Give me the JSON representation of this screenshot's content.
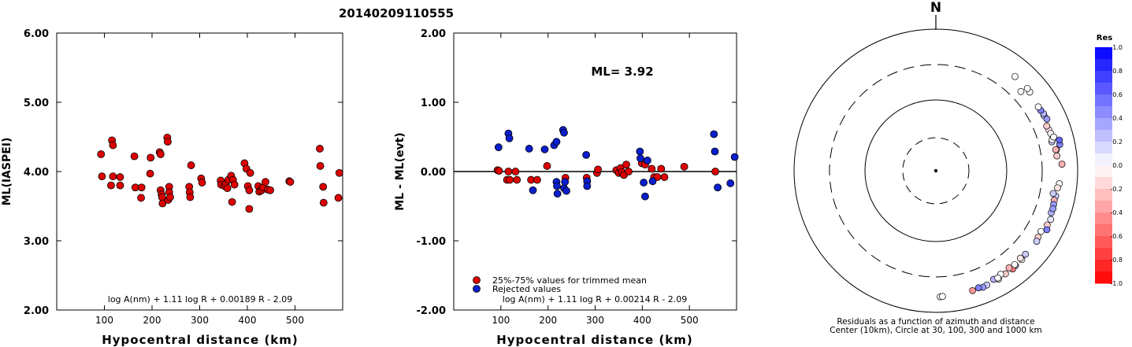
{
  "header": {
    "event_id": "20140209110555",
    "north_label": "N",
    "ml_text": "ML= 3.92"
  },
  "colors": {
    "trimmed": "#dd0000",
    "rejected": "#0a1ecc",
    "residual_positive": "#0000ff",
    "residual_negative": "#ff0000"
  },
  "chart_data": [
    {
      "type": "scatter",
      "panel": "ml-vs-distance",
      "ylabel": "ML(IASPEI)",
      "xlabel": "Hypocentral distance (km)",
      "xlim": [
        0,
        600
      ],
      "ylim": [
        2.0,
        6.0
      ],
      "xticks": [
        100,
        200,
        300,
        400,
        500
      ],
      "yticks": [
        "2.00",
        "3.00",
        "4.00",
        "5.00",
        "6.00"
      ],
      "formula": "log A(nm) + 1.11 log R + 0.00189 R - 2.09",
      "points": [
        [
          93,
          4.25
        ],
        [
          95,
          3.93
        ],
        [
          114,
          3.8
        ],
        [
          116,
          4.45
        ],
        [
          118,
          4.38
        ],
        [
          118,
          3.93
        ],
        [
          133,
          3.92
        ],
        [
          133,
          3.8
        ],
        [
          163,
          4.22
        ],
        [
          165,
          3.77
        ],
        [
          178,
          3.77
        ],
        [
          177,
          3.62
        ],
        [
          196,
          3.97
        ],
        [
          197,
          4.2
        ],
        [
          216,
          4.28
        ],
        [
          218,
          4.25
        ],
        [
          218,
          3.73
        ],
        [
          220,
          3.67
        ],
        [
          221,
          3.63
        ],
        [
          222,
          3.54
        ],
        [
          232,
          4.49
        ],
        [
          233,
          4.43
        ],
        [
          234,
          3.59
        ],
        [
          236,
          3.78
        ],
        [
          236,
          3.7
        ],
        [
          238,
          3.63
        ],
        [
          278,
          3.78
        ],
        [
          279,
          3.7
        ],
        [
          280,
          3.63
        ],
        [
          282,
          4.09
        ],
        [
          303,
          3.9
        ],
        [
          305,
          3.84
        ],
        [
          344,
          3.87
        ],
        [
          345,
          3.81
        ],
        [
          352,
          3.79
        ],
        [
          355,
          3.82
        ],
        [
          358,
          3.76
        ],
        [
          360,
          3.88
        ],
        [
          366,
          3.94
        ],
        [
          368,
          3.56
        ],
        [
          370,
          3.88
        ],
        [
          373,
          3.81
        ],
        [
          394,
          4.12
        ],
        [
          398,
          4.04
        ],
        [
          401,
          3.79
        ],
        [
          404,
          3.73
        ],
        [
          404,
          3.46
        ],
        [
          406,
          3.98
        ],
        [
          423,
          3.79
        ],
        [
          425,
          3.71
        ],
        [
          430,
          3.73
        ],
        [
          433,
          3.77
        ],
        [
          438,
          3.85
        ],
        [
          443,
          3.74
        ],
        [
          448,
          3.73
        ],
        [
          488,
          3.86
        ],
        [
          490,
          3.85
        ],
        [
          552,
          4.33
        ],
        [
          553,
          4.08
        ],
        [
          559,
          3.78
        ],
        [
          560,
          3.55
        ],
        [
          593,
          3.98
        ],
        [
          591,
          3.62
        ]
      ]
    },
    {
      "type": "scatter",
      "panel": "residual-vs-distance",
      "ylabel": "ML - ML(evt)",
      "xlabel": "Hypocentral distance (km)",
      "xlim": [
        0,
        600
      ],
      "ylim": [
        -2.0,
        2.0
      ],
      "xticks": [
        100,
        200,
        300,
        400,
        500
      ],
      "yticks": [
        "-2.00",
        "-1.00",
        "0.00",
        "1.00",
        "2.00"
      ],
      "formula": "log A(nm) + 1.11 log R + 0.00214 R - 2.09",
      "legend": [
        "25%-75% values for trimmed mean",
        "Rejected values"
      ],
      "series": [
        {
          "name": "25%-75% values for trimmed mean",
          "points": [
            [
              93,
              0.02
            ],
            [
              96,
              0.01
            ],
            [
              113,
              -0.12
            ],
            [
              116,
              0.0
            ],
            [
              119,
              -0.12
            ],
            [
              131,
              0.0
            ],
            [
              134,
              -0.12
            ],
            [
              164,
              -0.12
            ],
            [
              177,
              -0.12
            ],
            [
              198,
              0.08
            ],
            [
              237,
              -0.09
            ],
            [
              282,
              -0.09
            ],
            [
              304,
              -0.02
            ],
            [
              306,
              0.03
            ],
            [
              345,
              0.02
            ],
            [
              350,
              -0.02
            ],
            [
              354,
              0.05
            ],
            [
              357,
              -0.01
            ],
            [
              361,
              -0.05
            ],
            [
              366,
              0.1
            ],
            [
              371,
              0.0
            ],
            [
              399,
              0.12
            ],
            [
              406,
              0.1
            ],
            [
              420,
              0.04
            ],
            [
              425,
              -0.08
            ],
            [
              432,
              -0.08
            ],
            [
              440,
              0.04
            ],
            [
              447,
              -0.08
            ],
            [
              489,
              0.07
            ],
            [
              555,
              0.0
            ]
          ]
        },
        {
          "name": "Rejected values",
          "points": [
            [
              95,
              0.35
            ],
            [
              116,
              0.55
            ],
            [
              118,
              0.48
            ],
            [
              160,
              0.33
            ],
            [
              168,
              -0.27
            ],
            [
              193,
              0.32
            ],
            [
              213,
              0.38
            ],
            [
              218,
              0.43
            ],
            [
              218,
              -0.15
            ],
            [
              219,
              -0.21
            ],
            [
              220,
              -0.32
            ],
            [
              232,
              0.6
            ],
            [
              234,
              0.56
            ],
            [
              234,
              -0.24
            ],
            [
              236,
              -0.15
            ],
            [
              239,
              -0.28
            ],
            [
              281,
              0.24
            ],
            [
              283,
              -0.14
            ],
            [
              283,
              -0.21
            ],
            [
              395,
              0.29
            ],
            [
              396,
              0.19
            ],
            [
              403,
              -0.16
            ],
            [
              406,
              -0.36
            ],
            [
              411,
              0.16
            ],
            [
              422,
              -0.14
            ],
            [
              552,
              0.54
            ],
            [
              554,
              0.29
            ],
            [
              560,
              -0.23
            ],
            [
              587,
              -0.17
            ],
            [
              596,
              0.21
            ]
          ]
        }
      ]
    },
    {
      "type": "polar",
      "panel": "azimuth-residuals",
      "caption_line1": "Residuals as a function of azimuth and distance",
      "caption_line2": "Center (10km), Circle at 30, 100, 300 and 1000 km",
      "colorbar_title": "Res",
      "colorbar_ticks": [
        "1.0",
        "0.8",
        "0.6",
        "0.4",
        "0.2",
        "0.0",
        "-0.2",
        "-0.4",
        "-0.6",
        "-0.8",
        "-1.0"
      ],
      "rings_km": [
        30,
        100,
        300,
        1000
      ],
      "stations": [
        [
          76,
          470,
          0.2
        ],
        [
          75,
          485,
          0.0
        ],
        [
          70,
          480,
          -0.1
        ],
        [
          68,
          470,
          -0.2
        ],
        [
          72,
          490,
          0.0
        ],
        [
          74,
          520,
          0.0
        ],
        [
          80,
          520,
          -0.1
        ],
        [
          83,
          510,
          -0.2
        ],
        [
          80,
          505,
          -0.3
        ],
        [
          63,
          500,
          0.2
        ],
        [
          62,
          510,
          0.3
        ],
        [
          65,
          520,
          0.4
        ],
        [
          60,
          495,
          0.5
        ],
        [
          58,
          490,
          0.0
        ],
        [
          50,
          520,
          0.0
        ],
        [
          48,
          530,
          0.0
        ],
        [
          40,
          530,
          0.0
        ],
        [
          47,
          420,
          0.0
        ],
        [
          78,
          600,
          0.5
        ],
        [
          76,
          610,
          0.6
        ],
        [
          87,
          590,
          -0.3
        ],
        [
          96,
          550,
          0.0
        ],
        [
          98,
          525,
          -0.1
        ],
        [
          102,
          520,
          0.2
        ],
        [
          104,
          510,
          -0.3
        ],
        [
          106,
          520,
          0.4
        ],
        [
          110,
          525,
          0.3
        ],
        [
          116,
          545,
          -0.2
        ],
        [
          113,
          560,
          0.1
        ],
        [
          120,
          500,
          0.0
        ],
        [
          123,
          510,
          -0.2
        ],
        [
          125,
          530,
          0.2
        ],
        [
          133,
          520,
          0.2
        ],
        [
          136,
          540,
          0.0
        ],
        [
          140,
          545,
          0.3
        ],
        [
          142,
          560,
          -0.5
        ],
        [
          146,
          555,
          -0.2
        ],
        [
          150,
          570,
          0.0
        ],
        [
          156,
          570,
          0.2
        ],
        [
          158,
          580,
          0.4
        ],
        [
          160,
          560,
          0.5
        ],
        [
          163,
          575,
          -0.4
        ],
        [
          140,
          520,
          0.0
        ],
        [
          143,
          505,
          -0.3
        ],
        [
          148,
          515,
          0.0
        ],
        [
          136,
          505,
          -0.1
        ],
        [
          101,
          470,
          0.2
        ],
        [
          108,
          530,
          0.4
        ],
        [
          118,
          580,
          0.5
        ],
        [
          152,
          530,
          0.3
        ],
        [
          150,
          545,
          0.0
        ],
        [
          178,
          590,
          0.0
        ],
        [
          177,
          585,
          0.0
        ]
      ]
    }
  ]
}
